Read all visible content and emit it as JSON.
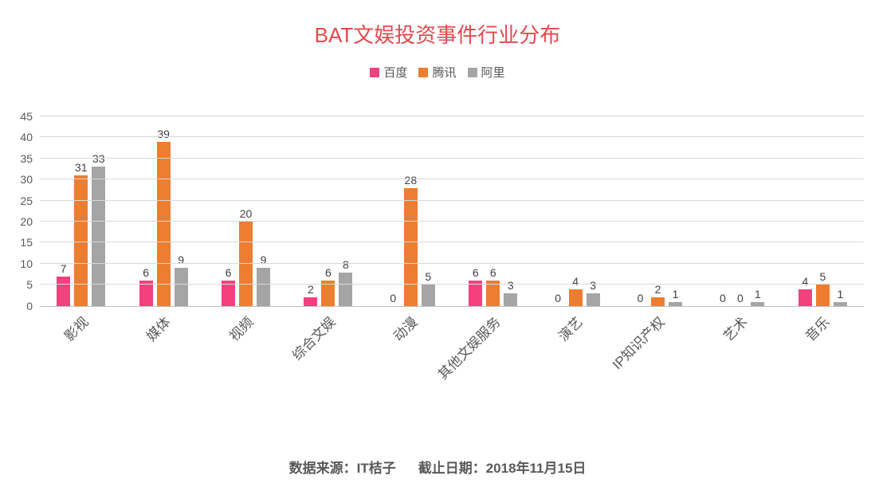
{
  "title": "BAT文娱投资事件行业分布",
  "footer": {
    "source": "数据来源：IT桔子",
    "date": "截止日期：2018年11月15日"
  },
  "colors": {
    "title": "#e5484d",
    "baidu": "#f3417e",
    "tencent": "#ed7d31",
    "ali": "#a5a5a5",
    "gridline": "#d9d9d9",
    "axis": "#bfbfbf",
    "text": "#595959"
  },
  "chart_data": {
    "type": "bar",
    "title": "BAT文娱投资事件行业分布",
    "categories": [
      "影视",
      "媒体",
      "视频",
      "综合文娱",
      "动漫",
      "其他文娱服务",
      "演艺",
      "IP知识产权",
      "艺术",
      "音乐"
    ],
    "series": [
      {
        "name": "百度",
        "color": "#f3417e",
        "values": [
          7,
          6,
          6,
          2,
          0,
          6,
          0,
          0,
          0,
          4
        ]
      },
      {
        "name": "腾讯",
        "color": "#ed7d31",
        "values": [
          31,
          39,
          20,
          6,
          28,
          6,
          4,
          2,
          0,
          5
        ]
      },
      {
        "name": "阿里",
        "color": "#a5a5a5",
        "values": [
          33,
          9,
          9,
          8,
          5,
          3,
          3,
          1,
          1,
          1
        ]
      }
    ],
    "xlabel": "",
    "ylabel": "",
    "ylim": [
      0,
      45
    ],
    "ytick_step": 5,
    "grid": true,
    "legend_position": "top",
    "data_labels": true,
    "source_note": "数据来源：IT桔子　截止日期：2018年11月15日"
  }
}
